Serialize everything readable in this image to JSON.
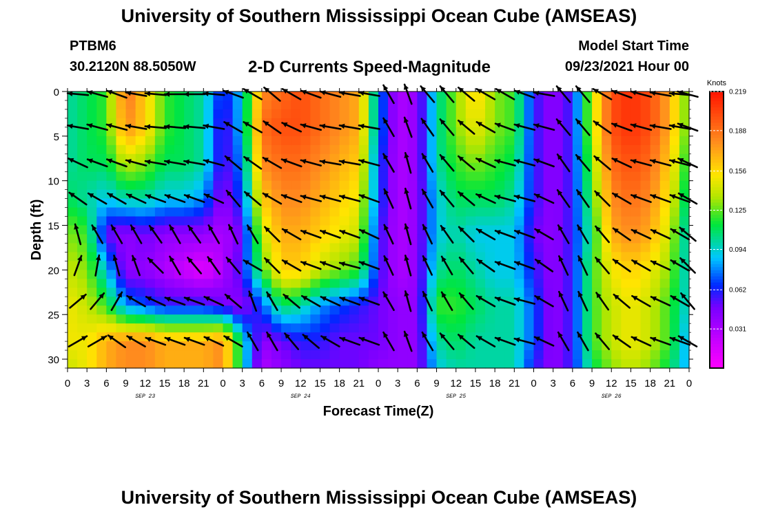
{
  "header": {
    "title": "University of Southern Mississippi Ocean Cube (AMSEAS)",
    "station": "PTBM6",
    "coords": "30.2120N  88.5050W",
    "subtitle": "2-D Currents Speed-Magnitude",
    "model_start_label": "Model Start Time",
    "model_start_value": "09/23/2021 Hour 00"
  },
  "footer": {
    "title": "University of Southern Mississippi Ocean Cube (AMSEAS)"
  },
  "chart_data": {
    "type": "heatmap",
    "title": "2-D Currents Speed-Magnitude",
    "xlabel": "Forecast Time(Z)",
    "ylabel": "Depth (ft)",
    "x_unit": "hours since 09/23/2021 00Z",
    "xlim": [
      0,
      96
    ],
    "ylim": [
      0,
      31
    ],
    "y_inverted": true,
    "x_ticks": [
      0,
      3,
      6,
      9,
      12,
      15,
      18,
      21,
      24,
      27,
      30,
      33,
      36,
      39,
      42,
      45,
      48,
      51,
      54,
      57,
      60,
      63,
      66,
      69,
      72,
      75,
      78,
      81,
      84,
      87,
      90,
      93,
      96
    ],
    "x_tick_labels": [
      "0",
      "3",
      "6",
      "9",
      "12",
      "15",
      "18",
      "21",
      "0",
      "3",
      "6",
      "9",
      "12",
      "15",
      "18",
      "21",
      "0",
      "3",
      "6",
      "9",
      "12",
      "15",
      "18",
      "21",
      "0",
      "3",
      "6",
      "9",
      "12",
      "15",
      "18",
      "21",
      "0"
    ],
    "y_ticks": [
      0,
      5,
      10,
      15,
      20,
      25,
      30
    ],
    "y_tick_labels": [
      "0",
      "5",
      "10",
      "15",
      "20",
      "25",
      "30"
    ],
    "date_labels": [
      {
        "text": "SEP 23",
        "x": 12
      },
      {
        "text": "SEP 24",
        "x": 36
      },
      {
        "text": "SEP 25",
        "x": 60
      },
      {
        "text": "SEP 26",
        "x": 84
      }
    ],
    "colorbar": {
      "unit": "Knots",
      "min": 0,
      "max": 0.219,
      "ticks": [
        0.031,
        0.062,
        0.094,
        0.125,
        0.156,
        0.188,
        0.219
      ],
      "tick_labels": [
        "0.031",
        "0.062",
        "0.094",
        "0.125",
        "0.156",
        "0.188",
        "0.219"
      ]
    },
    "field_times": [
      0,
      3,
      6,
      9,
      12,
      15,
      18,
      21,
      24,
      27,
      30,
      33,
      36,
      39,
      42,
      45,
      48,
      51,
      54,
      57,
      60,
      63,
      66,
      69,
      72,
      75,
      78,
      81,
      84,
      87,
      90,
      93,
      96
    ],
    "field_depths": [
      0,
      4,
      8,
      12,
      16,
      20,
      24,
      28,
      31
    ],
    "speed_knots": [
      [
        0.1,
        0.11,
        0.12,
        0.19,
        0.16,
        0.12,
        0.11,
        0.1,
        0.06,
        0.09,
        0.18,
        0.19,
        0.2,
        0.19,
        0.18,
        0.17,
        0.08,
        0.03,
        0.04,
        0.1,
        0.13,
        0.16,
        0.13,
        0.12,
        0.06,
        0.04,
        0.06,
        0.14,
        0.2,
        0.21,
        0.2,
        0.17,
        0.12
      ],
      [
        0.1,
        0.11,
        0.12,
        0.18,
        0.16,
        0.12,
        0.11,
        0.1,
        0.05,
        0.09,
        0.19,
        0.2,
        0.2,
        0.19,
        0.18,
        0.17,
        0.08,
        0.03,
        0.04,
        0.1,
        0.13,
        0.15,
        0.13,
        0.12,
        0.06,
        0.04,
        0.06,
        0.14,
        0.2,
        0.21,
        0.2,
        0.17,
        0.12
      ],
      [
        0.1,
        0.11,
        0.11,
        0.14,
        0.13,
        0.11,
        0.11,
        0.1,
        0.05,
        0.08,
        0.18,
        0.19,
        0.19,
        0.18,
        0.17,
        0.16,
        0.07,
        0.03,
        0.04,
        0.1,
        0.12,
        0.13,
        0.12,
        0.11,
        0.06,
        0.04,
        0.06,
        0.13,
        0.19,
        0.2,
        0.19,
        0.16,
        0.11
      ],
      [
        0.11,
        0.1,
        0.09,
        0.1,
        0.1,
        0.09,
        0.09,
        0.08,
        0.04,
        0.07,
        0.16,
        0.18,
        0.18,
        0.17,
        0.16,
        0.15,
        0.07,
        0.03,
        0.04,
        0.09,
        0.11,
        0.11,
        0.11,
        0.1,
        0.06,
        0.04,
        0.06,
        0.12,
        0.18,
        0.19,
        0.18,
        0.15,
        0.1
      ],
      [
        0.13,
        0.12,
        0.05,
        0.04,
        0.05,
        0.04,
        0.04,
        0.04,
        0.03,
        0.05,
        0.14,
        0.17,
        0.17,
        0.16,
        0.15,
        0.14,
        0.06,
        0.03,
        0.04,
        0.09,
        0.1,
        0.09,
        0.09,
        0.09,
        0.05,
        0.04,
        0.06,
        0.11,
        0.17,
        0.18,
        0.17,
        0.14,
        0.09
      ],
      [
        0.14,
        0.13,
        0.09,
        0.04,
        0.04,
        0.03,
        0.02,
        0.01,
        0.03,
        0.06,
        0.12,
        0.16,
        0.16,
        0.14,
        0.13,
        0.12,
        0.06,
        0.03,
        0.04,
        0.1,
        0.11,
        0.1,
        0.09,
        0.09,
        0.06,
        0.04,
        0.06,
        0.12,
        0.15,
        0.16,
        0.15,
        0.13,
        0.09
      ],
      [
        0.15,
        0.14,
        0.12,
        0.08,
        0.07,
        0.06,
        0.06,
        0.06,
        0.05,
        0.04,
        0.07,
        0.11,
        0.1,
        0.08,
        0.07,
        0.06,
        0.05,
        0.04,
        0.04,
        0.12,
        0.12,
        0.11,
        0.1,
        0.1,
        0.07,
        0.04,
        0.06,
        0.12,
        0.14,
        0.15,
        0.14,
        0.12,
        0.09
      ],
      [
        0.15,
        0.15,
        0.17,
        0.18,
        0.18,
        0.17,
        0.17,
        0.17,
        0.18,
        0.1,
        0.04,
        0.05,
        0.06,
        0.06,
        0.05,
        0.05,
        0.05,
        0.04,
        0.04,
        0.1,
        0.11,
        0.1,
        0.1,
        0.1,
        0.07,
        0.04,
        0.06,
        0.12,
        0.14,
        0.15,
        0.14,
        0.12,
        0.08
      ],
      [
        0.14,
        0.15,
        0.17,
        0.18,
        0.18,
        0.17,
        0.17,
        0.17,
        0.18,
        0.1,
        0.03,
        0.04,
        0.05,
        0.05,
        0.05,
        0.05,
        0.04,
        0.04,
        0.04,
        0.09,
        0.1,
        0.1,
        0.1,
        0.1,
        0.06,
        0.04,
        0.06,
        0.11,
        0.13,
        0.14,
        0.13,
        0.11,
        0.08
      ]
    ],
    "arrow_direction_deg": [
      [
        275,
        285,
        290,
        280,
        275,
        270,
        270,
        275,
        290,
        300,
        310,
        300,
        290,
        285,
        280,
        280,
        330,
        340,
        320,
        320,
        310,
        300,
        300,
        290,
        280,
        320,
        320,
        300,
        290,
        285,
        280,
        275,
        285
      ],
      [
        280,
        285,
        285,
        280,
        275,
        275,
        275,
        280,
        300,
        300,
        305,
        295,
        285,
        280,
        280,
        280,
        330,
        340,
        325,
        320,
        310,
        300,
        290,
        285,
        285,
        320,
        320,
        305,
        290,
        285,
        280,
        280,
        290
      ],
      [
        295,
        290,
        290,
        285,
        280,
        280,
        280,
        285,
        310,
        305,
        300,
        290,
        285,
        280,
        280,
        285,
        330,
        345,
        330,
        320,
        310,
        295,
        285,
        285,
        290,
        325,
        320,
        310,
        295,
        285,
        285,
        285,
        295
      ],
      [
        305,
        300,
        300,
        295,
        290,
        290,
        290,
        295,
        320,
        310,
        300,
        290,
        285,
        285,
        285,
        290,
        335,
        345,
        330,
        320,
        310,
        295,
        285,
        285,
        295,
        325,
        325,
        315,
        300,
        290,
        290,
        290,
        300
      ],
      [
        345,
        330,
        330,
        330,
        325,
        330,
        325,
        330,
        335,
        330,
        315,
        300,
        290,
        290,
        290,
        295,
        335,
        345,
        335,
        325,
        315,
        300,
        290,
        290,
        300,
        330,
        330,
        320,
        305,
        295,
        295,
        300,
        310
      ],
      [
        20,
        10,
        345,
        340,
        315,
        330,
        320,
        325,
        320,
        300,
        315,
        300,
        290,
        290,
        285,
        290,
        335,
        345,
        335,
        330,
        320,
        305,
        290,
        290,
        305,
        335,
        335,
        320,
        305,
        300,
        295,
        300,
        315
      ],
      [
        50,
        40,
        30,
        300,
        295,
        290,
        290,
        295,
        310,
        340,
        330,
        310,
        300,
        295,
        290,
        290,
        330,
        345,
        335,
        330,
        320,
        300,
        290,
        285,
        300,
        335,
        335,
        325,
        310,
        300,
        295,
        300,
        320
      ],
      [
        60,
        60,
        305,
        300,
        290,
        290,
        290,
        295,
        300,
        330,
        330,
        320,
        310,
        300,
        290,
        290,
        330,
        340,
        330,
        320,
        310,
        300,
        290,
        285,
        295,
        330,
        330,
        320,
        305,
        295,
        290,
        290,
        300
      ],
      [
        60,
        55,
        310,
        300,
        290,
        290,
        290,
        295,
        300,
        325,
        325,
        315,
        300,
        295,
        290,
        290,
        330,
        340,
        330,
        320,
        310,
        300,
        290,
        285,
        295,
        330,
        330,
        320,
        305,
        295,
        290,
        290,
        300
      ]
    ]
  }
}
